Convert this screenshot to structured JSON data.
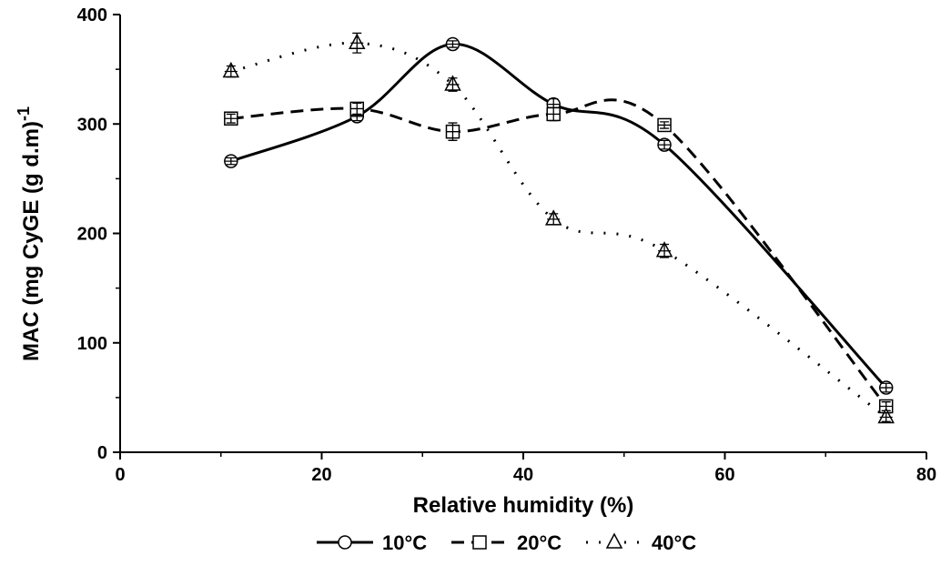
{
  "chart_data": {
    "type": "line",
    "x_label": "Relative humidity (%)",
    "y_label": {
      "text": "MAC (mg CyGE (g d.m)",
      "superscript": "-1"
    },
    "x": [
      11,
      23.5,
      33,
      43,
      54,
      76
    ],
    "series": [
      {
        "name": "10°C",
        "color": "#000000",
        "dash": "solid",
        "marker": "circle",
        "values": [
          266,
          307,
          373,
          318,
          281,
          59
        ],
        "errors": [
          3,
          4,
          3,
          5,
          4,
          4
        ]
      },
      {
        "name": "20°C",
        "color": "#000000",
        "dash": "dashed",
        "marker": "square",
        "values": [
          305,
          314,
          293,
          309,
          299,
          42
        ],
        "errors": [
          4,
          5,
          8,
          6,
          3,
          4
        ]
      },
      {
        "name": "40°C",
        "color": "#000000",
        "dash": "dotted",
        "marker": "triangle",
        "values": [
          348,
          374,
          336,
          213,
          184,
          32
        ],
        "errors": [
          5,
          9,
          6,
          5,
          6,
          4
        ]
      }
    ],
    "xlim": [
      0,
      80
    ],
    "xticks": [
      0,
      20,
      40,
      60,
      80
    ],
    "xminorticks": [
      10,
      30,
      50,
      70
    ],
    "ylim": [
      0,
      400
    ],
    "yticks": [
      0,
      100,
      200,
      300,
      400
    ],
    "yminorticks": [
      50,
      150,
      250,
      350
    ],
    "legend": "bottom"
  }
}
